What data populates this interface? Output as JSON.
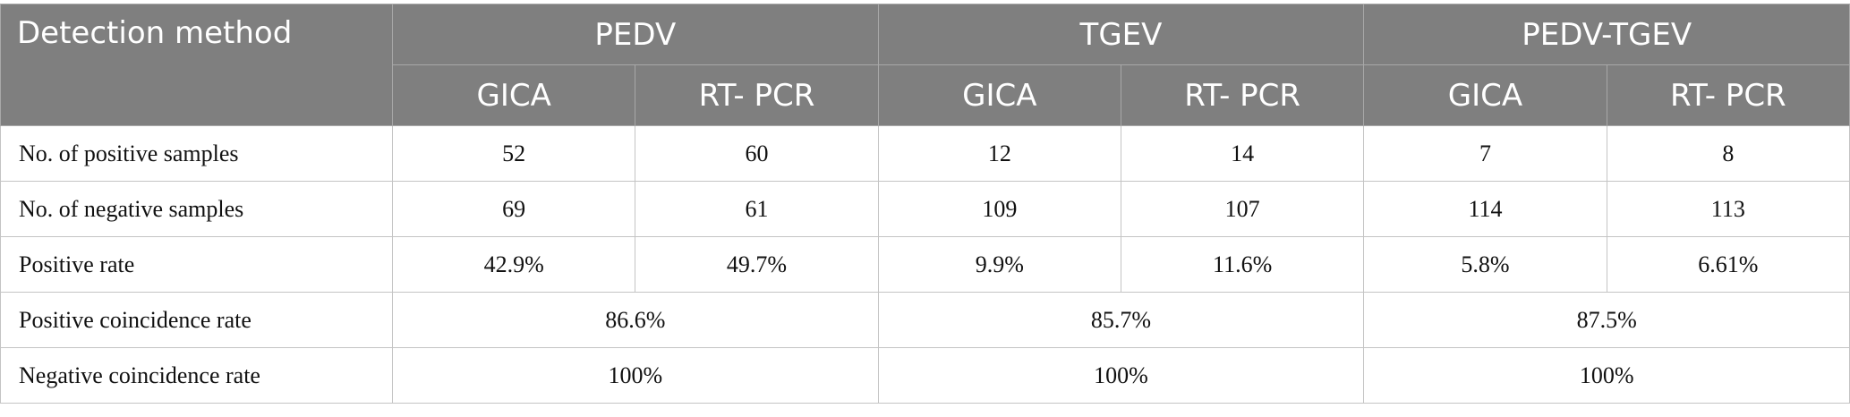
{
  "table": {
    "corner": "Detection method",
    "groups": [
      "PEDV",
      "TGEV",
      "PEDV-TGEV"
    ],
    "subheaders": [
      "GICA",
      "RT- PCR",
      "GICA",
      "RT- PCR",
      "GICA",
      "RT- PCR"
    ],
    "rows": [
      {
        "label": "No. of positive samples",
        "cells": [
          "52",
          "60",
          "12",
          "14",
          "7",
          "8"
        ]
      },
      {
        "label": "No. of negative samples",
        "cells": [
          "69",
          "61",
          "109",
          "107",
          "114",
          "113"
        ]
      },
      {
        "label": "Positive rate",
        "cells": [
          "42.9%",
          "49.7%",
          "9.9%",
          "11.6%",
          "5.8%",
          "6.61%"
        ]
      },
      {
        "label": "Positive coincidence rate",
        "cells": [
          "86.6%",
          "85.7%",
          "87.5%"
        ]
      },
      {
        "label": "Negative coincidence rate",
        "cells": [
          "100%",
          "100%",
          "100%"
        ]
      }
    ]
  }
}
